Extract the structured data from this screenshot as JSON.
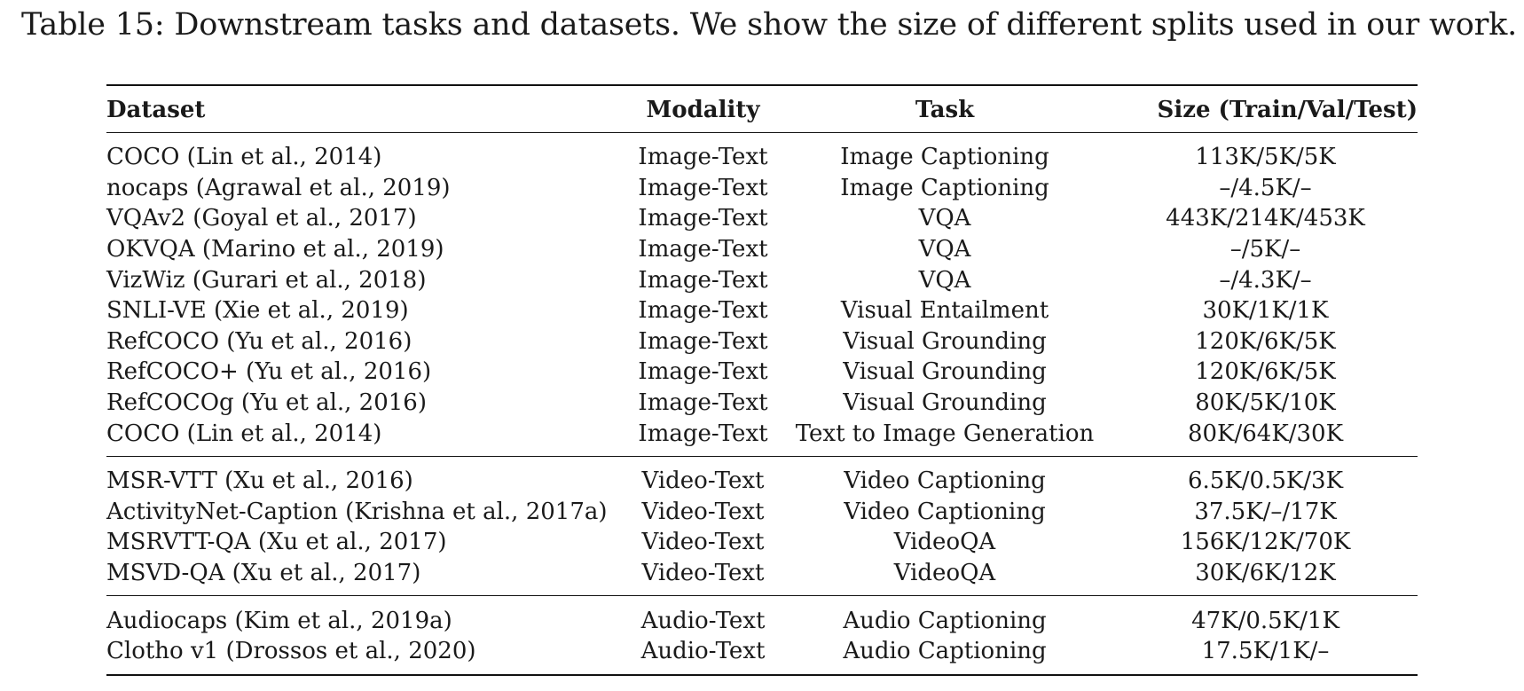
{
  "caption": "Table 15: Downstream tasks and datasets. We show the size of different splits used in our work.",
  "table": {
    "headers": {
      "dataset": "Dataset",
      "modality": "Modality",
      "task": "Task",
      "size": "Size (Train/Val/Test)"
    },
    "groups": [
      {
        "rows": [
          {
            "dataset": "COCO (Lin et al., 2014)",
            "modality": "Image-Text",
            "task": "Image Captioning",
            "size": "113K/5K/5K"
          },
          {
            "dataset": "nocaps (Agrawal et al., 2019)",
            "modality": "Image-Text",
            "task": "Image Captioning",
            "size": "–/4.5K/–"
          },
          {
            "dataset": "VQAv2 (Goyal et al., 2017)",
            "modality": "Image-Text",
            "task": "VQA",
            "size": "443K/214K/453K"
          },
          {
            "dataset": "OKVQA (Marino et al., 2019)",
            "modality": "Image-Text",
            "task": "VQA",
            "size": "–/5K/–"
          },
          {
            "dataset": "VizWiz (Gurari et al., 2018)",
            "modality": "Image-Text",
            "task": "VQA",
            "size": "–/4.3K/–"
          },
          {
            "dataset": "SNLI-VE (Xie et al., 2019)",
            "modality": "Image-Text",
            "task": "Visual Entailment",
            "size": "30K/1K/1K"
          },
          {
            "dataset": "RefCOCO (Yu et al., 2016)",
            "modality": "Image-Text",
            "task": "Visual Grounding",
            "size": "120K/6K/5K"
          },
          {
            "dataset": "RefCOCO+ (Yu et al., 2016)",
            "modality": "Image-Text",
            "task": "Visual Grounding",
            "size": "120K/6K/5K"
          },
          {
            "dataset": "RefCOCOg (Yu et al., 2016)",
            "modality": "Image-Text",
            "task": "Visual Grounding",
            "size": "80K/5K/10K"
          },
          {
            "dataset": "COCO (Lin et al., 2014)",
            "modality": "Image-Text",
            "task": "Text to Image Generation",
            "size": "80K/64K/30K"
          }
        ]
      },
      {
        "rows": [
          {
            "dataset": "MSR-VTT (Xu et al., 2016)",
            "modality": "Video-Text",
            "task": "Video Captioning",
            "size": "6.5K/0.5K/3K"
          },
          {
            "dataset": "ActivityNet-Caption (Krishna et al., 2017a)",
            "modality": "Video-Text",
            "task": "Video Captioning",
            "size": "37.5K/–/17K"
          },
          {
            "dataset": "MSRVTT-QA (Xu et al., 2017)",
            "modality": "Video-Text",
            "task": "VideoQA",
            "size": "156K/12K/70K"
          },
          {
            "dataset": "MSVD-QA (Xu et al., 2017)",
            "modality": "Video-Text",
            "task": "VideoQA",
            "size": "30K/6K/12K"
          }
        ]
      },
      {
        "rows": [
          {
            "dataset": "Audiocaps (Kim et al., 2019a)",
            "modality": "Audio-Text",
            "task": "Audio Captioning",
            "size": "47K/0.5K/1K"
          },
          {
            "dataset": "Clotho v1 (Drossos et al., 2020)",
            "modality": "Audio-Text",
            "task": "Audio Captioning",
            "size": "17.5K/1K/–"
          }
        ]
      }
    ]
  }
}
